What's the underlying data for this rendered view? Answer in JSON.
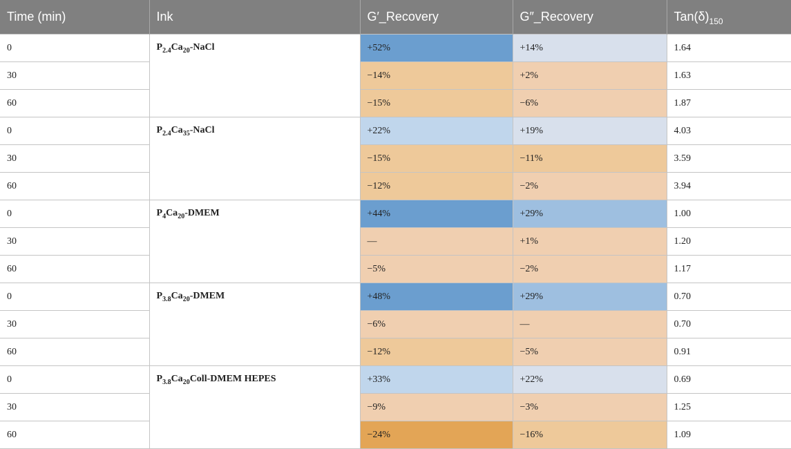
{
  "headers": {
    "time": "Time (min)",
    "ink": "Ink",
    "g1": "G′_Recovery",
    "g2": "G″_Recovery",
    "tan_main": "Tan(δ)",
    "tan_sub": "150"
  },
  "colors": {
    "strong_blue": "#6b9ecf",
    "mid_blue": "#9ebfe0",
    "light_blue": "#c0d6ec",
    "pale_blue": "#d8e0ec",
    "pale_orange": "#f0cfb0",
    "mid_orange": "#eec99a",
    "strong_orange": "#e3a556"
  },
  "groups": [
    {
      "ink": {
        "p": "P",
        "psub": "2.4",
        "ca": "Ca",
        "casub": "20",
        "rest": "-NaCl"
      },
      "rows": [
        {
          "time": "0",
          "g1": "+52%",
          "g1_color": "#6b9ecf",
          "g2": "+14%",
          "g2_color": "#d8e0ec",
          "tan": "1.64"
        },
        {
          "time": "30",
          "g1": "−14%",
          "g1_color": "#eec99a",
          "g2": "+2%",
          "g2_color": "#f0cfb0",
          "tan": "1.63"
        },
        {
          "time": "60",
          "g1": "−15%",
          "g1_color": "#eec99a",
          "g2": "−6%",
          "g2_color": "#f0cfb0",
          "tan": "1.87"
        }
      ]
    },
    {
      "ink": {
        "p": "P",
        "psub": "2.4",
        "ca": "Ca",
        "casub": "35",
        "rest": "-NaCl"
      },
      "rows": [
        {
          "time": "0",
          "g1": "+22%",
          "g1_color": "#c0d6ec",
          "g2": "+19%",
          "g2_color": "#d8e0ec",
          "tan": "4.03"
        },
        {
          "time": "30",
          "g1": "−15%",
          "g1_color": "#eec99a",
          "g2": "−11%",
          "g2_color": "#eec99a",
          "tan": "3.59"
        },
        {
          "time": "60",
          "g1": "−12%",
          "g1_color": "#eec99a",
          "g2": "−2%",
          "g2_color": "#f0cfb0",
          "tan": "3.94"
        }
      ]
    },
    {
      "ink": {
        "p": "P",
        "psub": "4",
        "ca": "Ca",
        "casub": "20",
        "rest": "-DMEM"
      },
      "rows": [
        {
          "time": "0",
          "g1": "+44%",
          "g1_color": "#6b9ecf",
          "g2": "+29%",
          "g2_color": "#9ebfe0",
          "tan": "1.00"
        },
        {
          "time": "30",
          "g1": "—",
          "g1_color": "#f0cfb0",
          "g2": "+1%",
          "g2_color": "#f0cfb0",
          "tan": "1.20"
        },
        {
          "time": "60",
          "g1": "−5%",
          "g1_color": "#f0cfb0",
          "g2": "−2%",
          "g2_color": "#f0cfb0",
          "tan": "1.17"
        }
      ]
    },
    {
      "ink": {
        "p": "P",
        "psub": "3.8",
        "ca": "Ca",
        "casub": "20",
        "rest": "-DMEM"
      },
      "rows": [
        {
          "time": "0",
          "g1": "+48%",
          "g1_color": "#6b9ecf",
          "g2": "+29%",
          "g2_color": "#9ebfe0",
          "tan": "0.70"
        },
        {
          "time": "30",
          "g1": "−6%",
          "g1_color": "#f0cfb0",
          "g2": "—",
          "g2_color": "#f0cfb0",
          "tan": "0.70"
        },
        {
          "time": "60",
          "g1": "−12%",
          "g1_color": "#eec99a",
          "g2": "−5%",
          "g2_color": "#f0cfb0",
          "tan": "0.91"
        }
      ]
    },
    {
      "ink": {
        "p": "P",
        "psub": "3.8",
        "ca": "Ca",
        "casub": "20",
        "rest": "Coll-DMEM HEPES"
      },
      "rows": [
        {
          "time": "0",
          "g1": "+33%",
          "g1_color": "#c0d6ec",
          "g2": "+22%",
          "g2_color": "#d8e0ec",
          "tan": "0.69"
        },
        {
          "time": "30",
          "g1": "−9%",
          "g1_color": "#f0cfb0",
          "g2": "−3%",
          "g2_color": "#f0cfb0",
          "tan": "1.25"
        },
        {
          "time": "60",
          "g1": "−24%",
          "g1_color": "#e3a556",
          "g2": "−16%",
          "g2_color": "#eec99a",
          "tan": "1.09"
        }
      ]
    }
  ]
}
